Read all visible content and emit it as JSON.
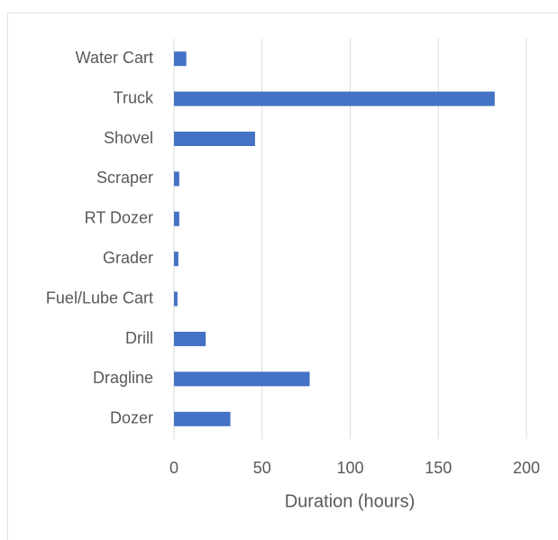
{
  "chart_data": {
    "type": "bar",
    "orientation": "horizontal",
    "categories": [
      "Water Cart",
      "Truck",
      "Shovel",
      "Scraper",
      "RT Dozer",
      "Grader",
      "Fuel/Lube Cart",
      "Drill",
      "Dragline",
      "Dozer"
    ],
    "values": [
      7,
      182,
      46,
      3,
      3,
      2.5,
      2,
      18,
      77,
      32
    ],
    "color": "#4472c4",
    "x_label": "Duration (hours)",
    "xlim": [
      0,
      200
    ],
    "xticks": [
      0,
      50,
      100,
      150,
      200
    ],
    "grid": true
  }
}
